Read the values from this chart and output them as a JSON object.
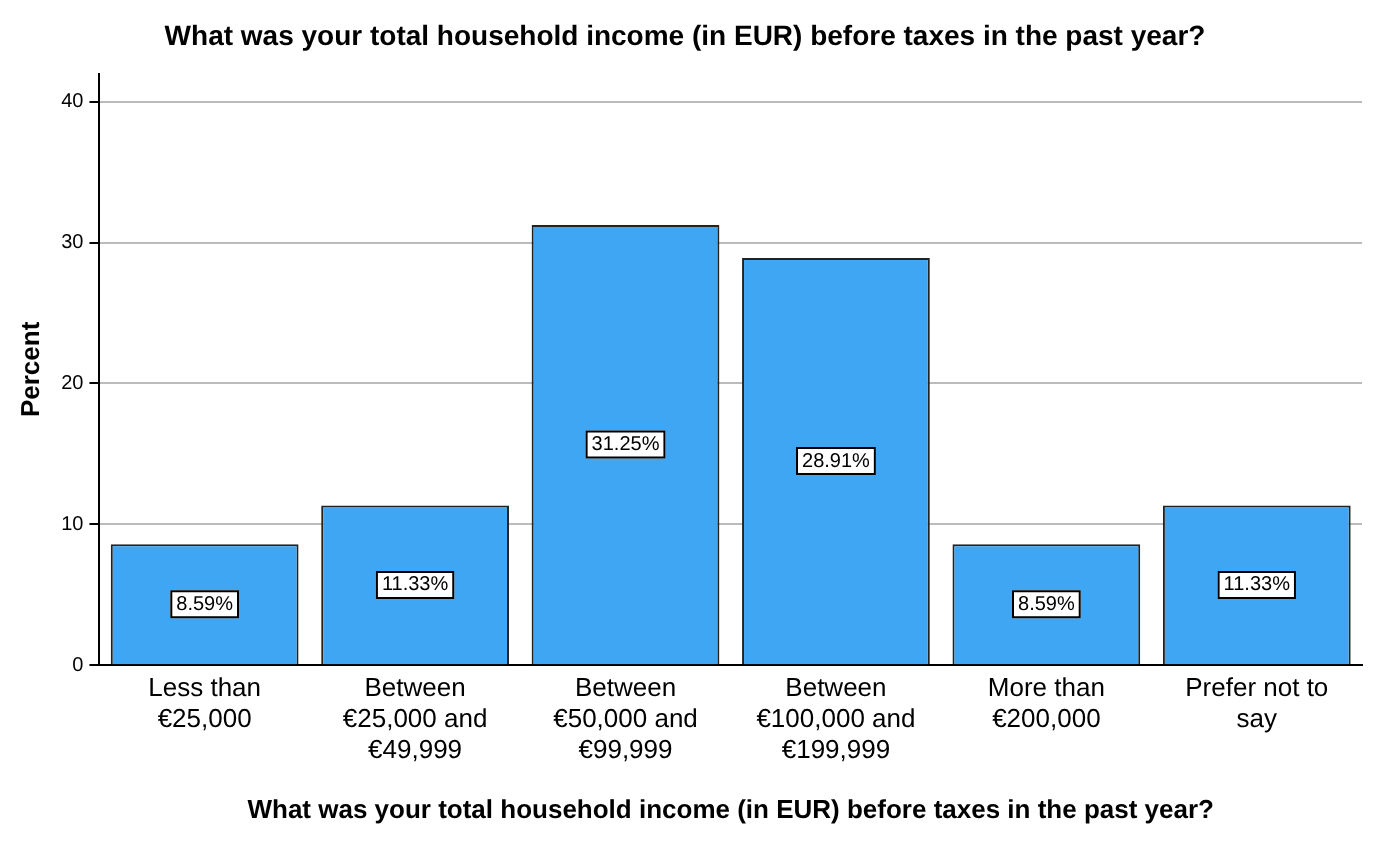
{
  "chart_data": {
    "type": "bar",
    "title": "What was your total household income (in EUR) before taxes in the past year?",
    "xlabel": "What was your total household income (in EUR) before taxes in the past year?",
    "ylabel": "Percent",
    "categories": [
      "Less than €25,000",
      "Between €25,000 and €49,999",
      "Between €50,000 and €99,999",
      "Between €100,000 and €199,999",
      "More than €200,000",
      "Prefer not to say"
    ],
    "values": [
      8.59,
      11.33,
      31.25,
      28.91,
      8.59,
      11.33
    ],
    "value_labels": [
      "8.59%",
      "11.33%",
      "31.25%",
      "28.91%",
      "8.59%",
      "11.33%"
    ],
    "color": "#3ea6f2",
    "ylim": [
      0,
      42
    ],
    "yticks": [
      0,
      10,
      20,
      30,
      40
    ],
    "grid": "y",
    "legend": false
  }
}
